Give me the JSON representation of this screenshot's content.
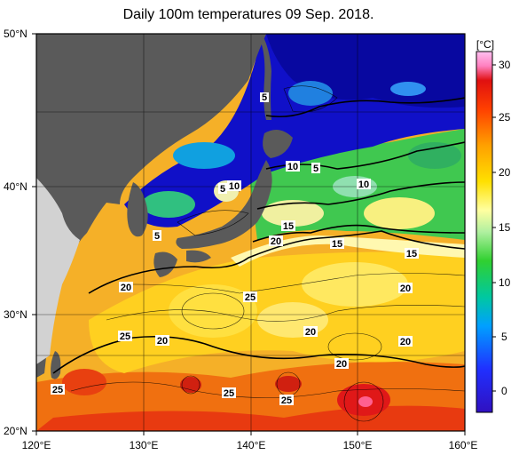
{
  "title": "Daily 100m temperatures 09 Sep. 2018.",
  "colorbar": {
    "unit": "[°C]",
    "ticks": [
      "30",
      "25",
      "20",
      "15",
      "10",
      "5",
      "0"
    ],
    "min": -2,
    "max": 32
  },
  "axes": {
    "lat_labels": [
      "50°N",
      "40°N",
      "30°N",
      "20°N"
    ],
    "lon_labels": [
      "120°E",
      "130°E",
      "140°E",
      "150°E",
      "160°E"
    ]
  },
  "contour_labels": {
    "c1": "5",
    "c2": "10",
    "c3": "10",
    "c4": "5",
    "c5": "5",
    "c6": "10",
    "c7": "5",
    "c8": "10",
    "c9": "15",
    "c10": "20",
    "c11": "15",
    "c12": "15",
    "c13": "20",
    "c14": "25",
    "c15": "20",
    "c16": "25",
    "c17": "20",
    "c18": "20",
    "c19": "20",
    "c20": "25",
    "c21": "25",
    "c22": "25"
  },
  "colors": {
    "land": "#5a5a5a",
    "land_outside": "#d2d2d2",
    "cold": "#1010c8",
    "warm": "#f0a020"
  }
}
